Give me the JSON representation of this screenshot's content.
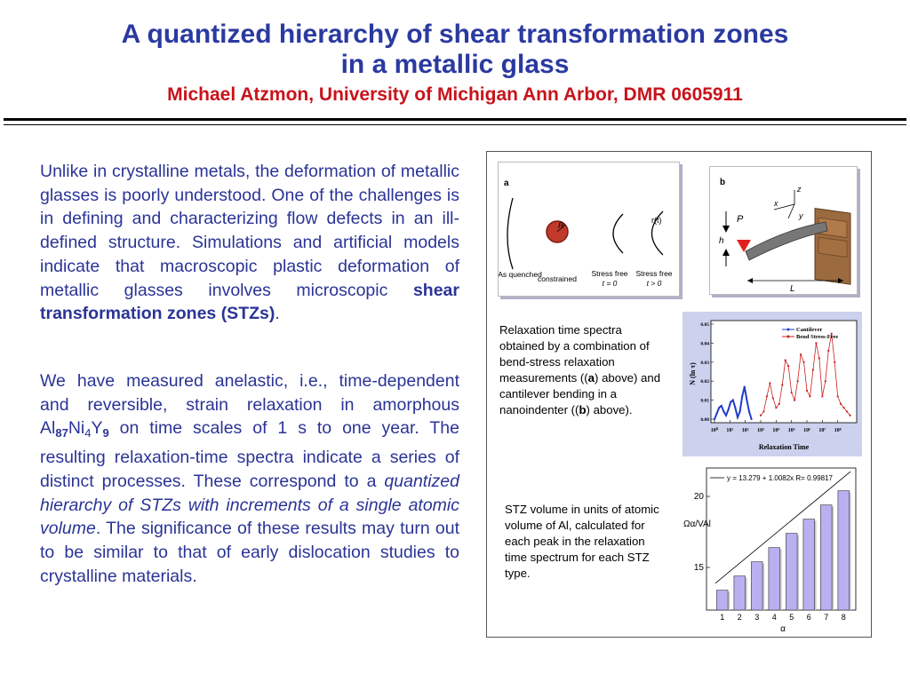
{
  "header": {
    "title_line1": "A quantized hierarchy of shear transformation zones",
    "title_line2": "in a metallic glass",
    "subtitle": "Michael Atzmon, University of Michigan Ann Arbor, DMR 0605911"
  },
  "body": {
    "p1_text": "Unlike in crystalline metals, the deformation of metallic glasses is poorly understood. One of the challenges is in defining and characterizing flow defects in an ill-defined structure. Simulations and artificial models indicate that macroscopic plastic deformation of metallic glasses involves microscopic ",
    "p1_bold": "shear transformation zones (STZs)",
    "p1_end": ".",
    "p2_a": "We have measured anelastic, i.e., time-dependent and reversible, strain relaxation in amorphous Al",
    "p2_sub1": "87",
    "p2_b": "Ni",
    "p2_sub2": "4",
    "p2_c": "Y",
    "p2_sub3": "9",
    "p2_d": " on time scales of 1 s to one year. The resulting relaxation-time spectra indicate a series of distinct processes. These correspond to a ",
    "p2_italic": "quantized hierarchy of STZs with increments of a single atomic volume",
    "p2_e": ". The significance of these results may turn out to be similar to that of early dislocation studies to crystalline materials."
  },
  "figure_a": {
    "panel_letter": "a",
    "label_as_quenched": "As quenched",
    "label_r": "R",
    "label_constrained": "constrained",
    "label_rt": "r(t)",
    "label_sf0_line1": "Stress free",
    "label_sf0_line2": "t = 0",
    "label_sf1_line1": "Stress free",
    "label_sf1_line2": "t > 0"
  },
  "figure_b": {
    "panel_letter": "b",
    "label_z": "z",
    "label_x": "x",
    "label_y": "y",
    "label_P": "P",
    "label_h": "h",
    "label_L": "L"
  },
  "caption1": {
    "a": "Relaxation time spectra obtained by a combination of bend-stress relaxation measurements ((",
    "b1": "a",
    "c": ") above) and cantilever bending in a nanoindenter ((",
    "b2": "b",
    "d": ") above)."
  },
  "caption2": {
    "text": "STZ volume in units of atomic volume of Al, calculated for each peak in the relaxation time spectrum for each STZ type."
  },
  "chart_data": [
    {
      "type": "line",
      "xlabel": "Relaxation Time",
      "ylabel": "N (ln τ)",
      "x_scale": "log",
      "xlim_exponent": [
        0,
        9
      ],
      "x_ticks": [
        "10⁰",
        "10¹",
        "10²",
        "10³",
        "10⁴",
        "10⁵",
        "10⁶",
        "10⁷",
        "10⁸"
      ],
      "ylim": [
        0,
        0.05
      ],
      "y_ticks": [
        "0.00",
        "0.01",
        "0.02",
        "0.03",
        "0.04",
        "0.05"
      ],
      "legend_position": "top-right",
      "series": [
        {
          "name": "Cantilever",
          "color": "#1f3ccc",
          "log10_tau": [
            0.0,
            0.15,
            0.3,
            0.45,
            0.6,
            0.75,
            0.9,
            1.05,
            1.2,
            1.35,
            1.5,
            1.65,
            1.8,
            1.95,
            2.1,
            2.25,
            2.4
          ],
          "values": [
            0.0,
            0.003,
            0.006,
            0.007,
            0.004,
            0.002,
            0.005,
            0.009,
            0.01,
            0.006,
            0.001,
            0.004,
            0.012,
            0.017,
            0.01,
            0.004,
            0.0
          ]
        },
        {
          "name": "Bend Stress-Free",
          "color": "#cc1f1f",
          "log10_tau": [
            3.0,
            3.2,
            3.4,
            3.6,
            3.8,
            4.0,
            4.2,
            4.4,
            4.6,
            4.8,
            5.0,
            5.2,
            5.4,
            5.6,
            5.8,
            6.0,
            6.2,
            6.4,
            6.6,
            6.8,
            7.0,
            7.2,
            7.4,
            7.6,
            7.8,
            8.0,
            8.2,
            8.4,
            8.6,
            8.8
          ],
          "values": [
            0.002,
            0.004,
            0.012,
            0.019,
            0.011,
            0.006,
            0.008,
            0.018,
            0.031,
            0.028,
            0.014,
            0.01,
            0.02,
            0.034,
            0.03,
            0.015,
            0.012,
            0.026,
            0.04,
            0.032,
            0.012,
            0.02,
            0.036,
            0.045,
            0.03,
            0.012,
            0.008,
            0.006,
            0.004,
            0.002
          ]
        }
      ]
    },
    {
      "type": "bar",
      "xlabel": "α",
      "ylabel": "Ωα/VAl",
      "categories": [
        "1",
        "2",
        "3",
        "4",
        "5",
        "6",
        "7",
        "8"
      ],
      "values": [
        13.4,
        14.4,
        15.4,
        16.4,
        17.4,
        18.4,
        19.4,
        20.4
      ],
      "fit_label": "y = 13.279 + 1.0082x   R= 0.99817",
      "fit": {
        "intercept": 13.279,
        "slope": 1.0082
      },
      "ylim": [
        12,
        22
      ],
      "y_ticks": [
        "15",
        "20"
      ],
      "y_tick_values": [
        15,
        20
      ],
      "bar_color": "#b8b0f0"
    }
  ]
}
